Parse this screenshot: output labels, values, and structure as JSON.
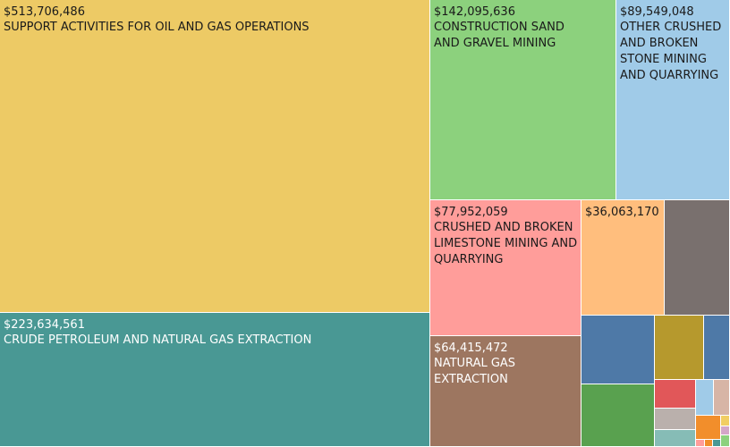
{
  "chart_data": {
    "type": "treemap",
    "nodes": [
      {
        "name": "SUPPORT ACTIVITIES FOR OIL AND GAS OPERATIONS",
        "value": 513706486,
        "value_label": "$513,706,486",
        "color": "#EDCA65"
      },
      {
        "name": "CRUDE PETROLEUM AND NATURAL GAS EXTRACTION",
        "value": 223634561,
        "value_label": "$223,634,561",
        "color": "#499894"
      },
      {
        "name": "CONSTRUCTION SAND AND GRAVEL MINING",
        "value": 142095636,
        "value_label": "$142,095,636",
        "color": "#8CD17D"
      },
      {
        "name": "OTHER CRUSHED AND BROKEN STONE MINING AND QUARRYING",
        "value": 89549048,
        "value_label": "$89,549,048",
        "color": "#A0CBE8"
      },
      {
        "name": "CRUSHED AND BROKEN LIMESTONE MINING AND QUARRYING",
        "value": 77952059,
        "value_label": "$77,952,059",
        "color": "#FF9D9A"
      },
      {
        "name": "NATURAL GAS EXTRACTION",
        "value": 64415472,
        "value_label": "$64,415,472",
        "color": "#9D7660"
      },
      {
        "name": "",
        "value": 36063170,
        "value_label": "$36,063,170",
        "color": "#FFBE7D"
      }
    ],
    "unlabeled_tiles": [
      {
        "color": "#79706E"
      },
      {
        "color": "#4E79A7"
      },
      {
        "color": "#B6992D"
      },
      {
        "color": "#4E79A7"
      },
      {
        "color": "#59A14F"
      },
      {
        "color": "#E15759"
      },
      {
        "color": "#A0CBE8"
      },
      {
        "color": "#D7B5A6"
      },
      {
        "color": "#BAB0AC"
      },
      {
        "color": "#86BCB6"
      },
      {
        "color": "#F28E2B"
      },
      {
        "color": "#F1CE63"
      },
      {
        "color": "#D4A6C8"
      },
      {
        "color": "#8CD17D"
      },
      {
        "color": "#FF9D9A"
      },
      {
        "color": "#F28E2B"
      },
      {
        "color": "#499894"
      }
    ]
  }
}
